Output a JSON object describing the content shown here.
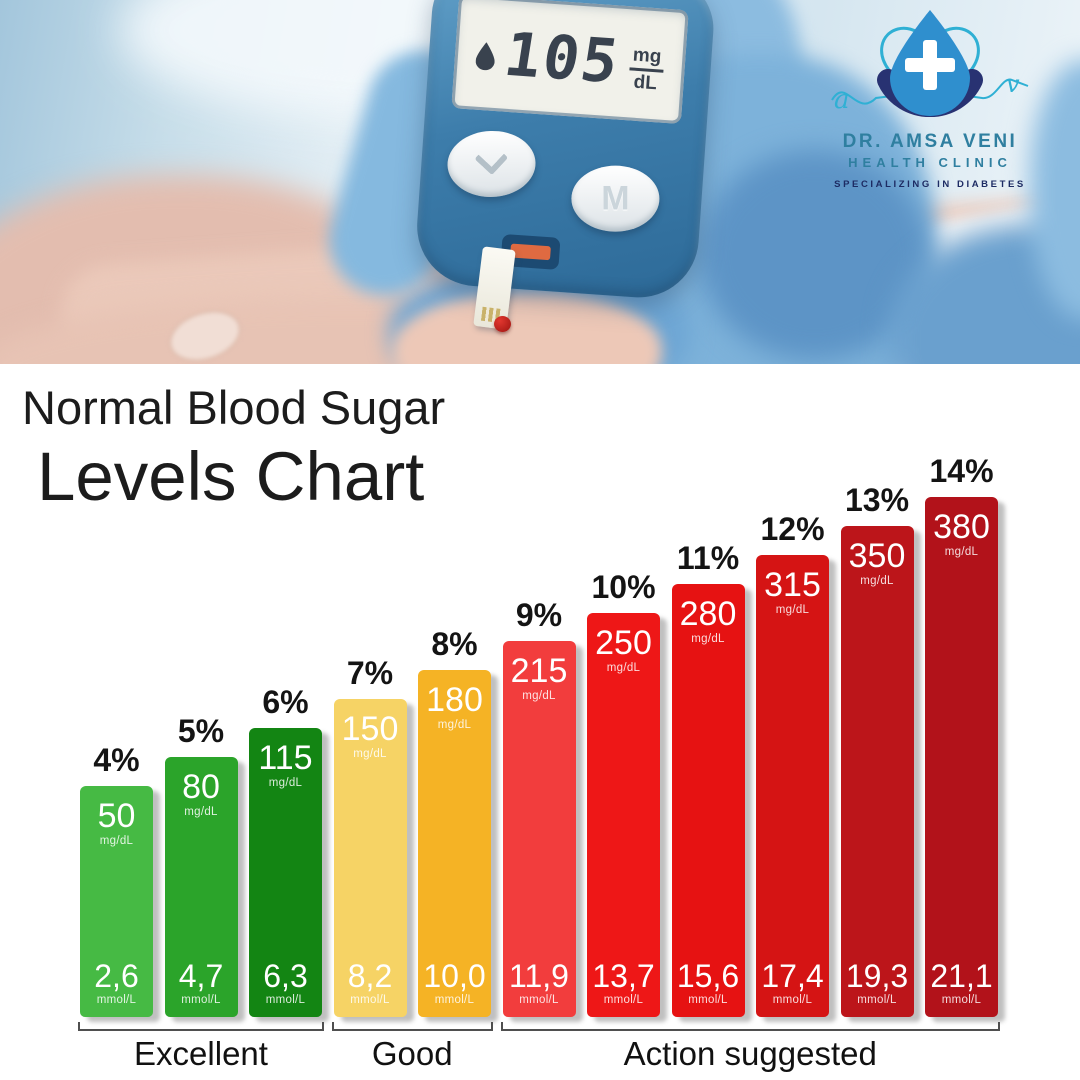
{
  "brand": {
    "line1": "DR. AMSA VENI",
    "line2": "HEALTH CLINIC",
    "tagline": "SPECIALIZING IN DIABETES"
  },
  "hero": {
    "meter_reading": "105",
    "unit_numerator": "mg",
    "unit_denominator": "dL",
    "memory_button_label": "M"
  },
  "title": {
    "line1": "Normal Blood Sugar",
    "line2": "Levels Chart"
  },
  "chart_data": {
    "type": "bar",
    "title": "Normal Blood Sugar Levels Chart",
    "categories": [
      "4%",
      "5%",
      "6%",
      "7%",
      "8%",
      "9%",
      "10%",
      "11%",
      "12%",
      "13%",
      "14%"
    ],
    "series": [
      {
        "name": "mg/dL",
        "values": [
          50,
          80,
          115,
          150,
          180,
          215,
          250,
          280,
          315,
          350,
          380
        ]
      },
      {
        "name": "mmol/L",
        "values": [
          2.6,
          4.7,
          6.3,
          8.2,
          10.0,
          11.9,
          13.7,
          15.6,
          17.4,
          19.3,
          21.1
        ]
      }
    ],
    "bar_colors": [
      "#46ba44",
      "#2ba42a",
      "#138513",
      "#f6d365",
      "#f5b325",
      "#f23d3d",
      "#ee1717",
      "#e61212",
      "#d51414",
      "#bc151a",
      "#b2121a"
    ],
    "groups": [
      {
        "label": "Excellent",
        "start": 0,
        "end": 2
      },
      {
        "label": "Good",
        "start": 3,
        "end": 4
      },
      {
        "label": "Action suggested",
        "start": 5,
        "end": 10
      }
    ],
    "decimal_separator": ",",
    "grid": false,
    "legend_position": "none"
  }
}
